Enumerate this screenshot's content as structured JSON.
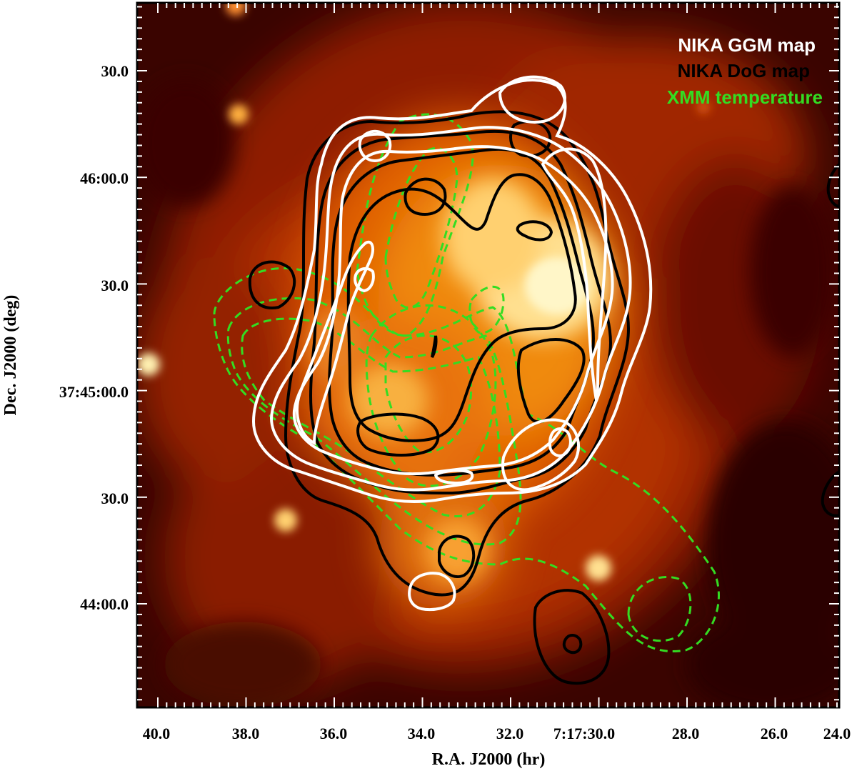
{
  "figure": {
    "xlabel": "R.A. J2000 (hr)",
    "ylabel": "Dec. J2000 (deg)",
    "x_ticks": [
      "40.0",
      "38.0",
      "36.0",
      "34.0",
      "32.0",
      "7:17:30.0",
      "28.0",
      "26.0",
      "24.0"
    ],
    "y_ticks": [
      "30.0",
      "46:00.0",
      "30.0",
      "37:45:00.0",
      "30.0",
      "44:00.0"
    ],
    "legend": [
      {
        "label": "NIKA GGM map",
        "color": "#ffffff"
      },
      {
        "label": "NIKA DoG map",
        "color": "#000000"
      },
      {
        "label": "XMM temperature",
        "color": "#33dd22"
      }
    ],
    "colors": {
      "background_dark": "#3a0400",
      "background_mid": "#c63a00",
      "core_bright": "#fff6c8",
      "ggm_contours": "#ffffff",
      "dog_contours": "#000000",
      "xmm_contours": "#33dd22"
    }
  }
}
